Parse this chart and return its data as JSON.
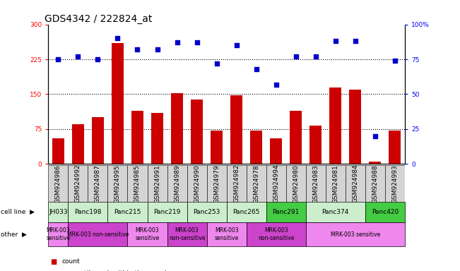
{
  "title": "GDS4342 / 222824_at",
  "samples": [
    "GSM924986",
    "GSM924992",
    "GSM924987",
    "GSM924995",
    "GSM924985",
    "GSM924991",
    "GSM924989",
    "GSM924990",
    "GSM924979",
    "GSM924982",
    "GSM924978",
    "GSM924994",
    "GSM924980",
    "GSM924983",
    "GSM924981",
    "GSM924984",
    "GSM924988",
    "GSM924993"
  ],
  "counts": [
    55,
    85,
    100,
    260,
    115,
    110,
    152,
    138,
    72,
    148,
    72,
    55,
    115,
    82,
    165,
    160,
    5,
    72
  ],
  "percentiles": [
    75,
    77,
    75,
    90,
    82,
    82,
    87,
    87,
    72,
    85,
    68,
    57,
    77,
    77,
    88,
    88,
    20,
    74
  ],
  "cell_lines": [
    {
      "name": "JH033",
      "start": 0,
      "end": 1,
      "color": "#cceecc"
    },
    {
      "name": "Panc198",
      "start": 1,
      "end": 3,
      "color": "#cceecc"
    },
    {
      "name": "Panc215",
      "start": 3,
      "end": 5,
      "color": "#cceecc"
    },
    {
      "name": "Panc219",
      "start": 5,
      "end": 7,
      "color": "#cceecc"
    },
    {
      "name": "Panc253",
      "start": 7,
      "end": 9,
      "color": "#cceecc"
    },
    {
      "name": "Panc265",
      "start": 9,
      "end": 11,
      "color": "#cceecc"
    },
    {
      "name": "Panc291",
      "start": 11,
      "end": 13,
      "color": "#44cc44"
    },
    {
      "name": "Panc374",
      "start": 13,
      "end": 16,
      "color": "#cceecc"
    },
    {
      "name": "Panc420",
      "start": 16,
      "end": 18,
      "color": "#44cc44"
    }
  ],
  "other_labels": [
    {
      "text": "MRK-003\nsensitive",
      "start": 0,
      "end": 1,
      "color": "#ee88ee"
    },
    {
      "text": "MRK-003 non-sensitive",
      "start": 1,
      "end": 4,
      "color": "#cc44cc"
    },
    {
      "text": "MRK-003\nsensitive",
      "start": 4,
      "end": 6,
      "color": "#ee88ee"
    },
    {
      "text": "MRK-003\nnon-sensitive",
      "start": 6,
      "end": 8,
      "color": "#cc44cc"
    },
    {
      "text": "MRK-003\nsensitive",
      "start": 8,
      "end": 10,
      "color": "#ee88ee"
    },
    {
      "text": "MRK-003\nnon-sensitive",
      "start": 10,
      "end": 13,
      "color": "#cc44cc"
    },
    {
      "text": "MRK-003 sensitive",
      "start": 13,
      "end": 18,
      "color": "#ee88ee"
    }
  ],
  "ylim_left": [
    0,
    300
  ],
  "ylim_right": [
    0,
    100
  ],
  "yticks_left": [
    0,
    75,
    150,
    225,
    300
  ],
  "yticks_right": [
    0,
    25,
    50,
    75,
    100
  ],
  "bar_color": "#cc0000",
  "dot_color": "#0000cc",
  "bg_color": "#ffffff",
  "title_fontsize": 10,
  "tick_fontsize": 6.5,
  "label_fontsize": 7
}
